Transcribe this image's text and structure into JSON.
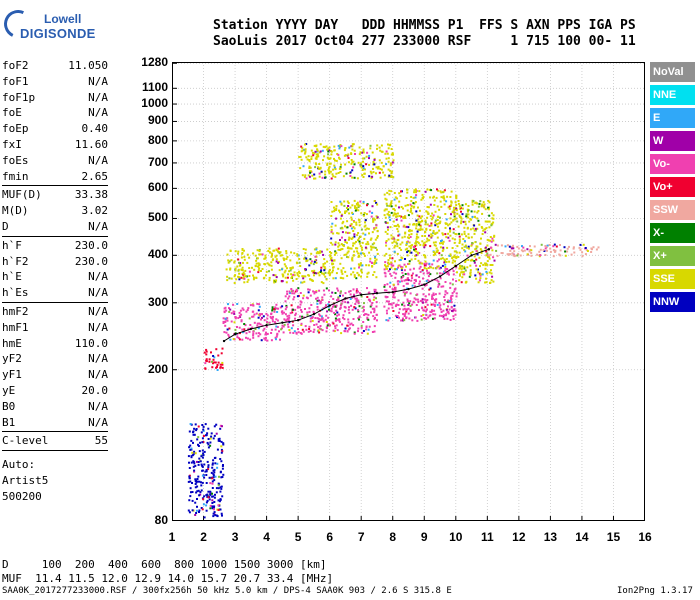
{
  "logo": {
    "line1": "Lowell",
    "line2": "DIGISONDE"
  },
  "header": {
    "line1": "Station YYYY DAY   DDD HHMMSS P1  FFS S AXN PPS IGA PS",
    "line2": "SaoLuis 2017 Oct04 277 233000 RSF     1 715 100 00- 11"
  },
  "params": [
    {
      "k": "foF2",
      "v": "11.050"
    },
    {
      "k": "foF1",
      "v": "N/A"
    },
    {
      "k": "foF1p",
      "v": "N/A"
    },
    {
      "k": "foE",
      "v": "N/A"
    },
    {
      "k": "foEp",
      "v": "0.40"
    },
    {
      "k": "fxI",
      "v": "11.60"
    },
    {
      "k": "foEs",
      "v": "N/A"
    },
    {
      "k": "fmin",
      "v": "2.65"
    },
    {
      "k": "MUF(D)",
      "v": "33.38",
      "sep": true
    },
    {
      "k": "M(D)",
      "v": "3.02"
    },
    {
      "k": "D",
      "v": "N/A"
    },
    {
      "k": "h`F",
      "v": "230.0",
      "sep": true
    },
    {
      "k": "h`F2",
      "v": "230.0"
    },
    {
      "k": "h`E",
      "v": "N/A"
    },
    {
      "k": "h`Es",
      "v": "N/A"
    },
    {
      "k": "hmF2",
      "v": "N/A",
      "sep": true
    },
    {
      "k": "hmF1",
      "v": "N/A"
    },
    {
      "k": "hmE",
      "v": "110.0"
    },
    {
      "k": "yF2",
      "v": "N/A"
    },
    {
      "k": "yF1",
      "v": "N/A"
    },
    {
      "k": "yE",
      "v": "20.0"
    },
    {
      "k": "B0",
      "v": "N/A"
    },
    {
      "k": "B1",
      "v": "N/A"
    },
    {
      "k": "C-level",
      "v": "55",
      "sep": true
    }
  ],
  "auto": {
    "l1": "Auto:",
    "l2": "Artist5",
    "l3": "500200"
  },
  "legend": [
    {
      "label": "NoVal",
      "color": "#909090"
    },
    {
      "label": "NNE",
      "color": "#00e0f0"
    },
    {
      "label": "E",
      "color": "#30a8f8"
    },
    {
      "label": "W",
      "color": "#a000a8"
    },
    {
      "label": "Vo-",
      "color": "#f040b0"
    },
    {
      "label": "Vo+",
      "color": "#f00030"
    },
    {
      "label": "SSW",
      "color": "#f0a8a0"
    },
    {
      "label": "X-",
      "color": "#008000"
    },
    {
      "label": "X+",
      "color": "#80c040"
    },
    {
      "label": "SSE",
      "color": "#d8d800"
    },
    {
      "label": "NNW",
      "color": "#0000c0"
    }
  ],
  "bottom": {
    "d_line": "D     100  200  400  600  800 1000 1500 3000 [km]",
    "muf_line": "MUF  11.4 11.5 12.0 12.9 14.0 15.7 20.7 33.4 [MHz]"
  },
  "footer": {
    "left": "SAA0K_2017277233000.RSF / 300fx256h 50 kHz 5.0 km / DPS-4 SAA0K 903 / 2.6 S 315.8 E",
    "right": "Ion2Png 1.3.17"
  },
  "chart_data": {
    "type": "scatter",
    "title": "",
    "xlabel": "",
    "ylabel": "",
    "xlim": [
      1,
      16
    ],
    "ylim": [
      80,
      1290
    ],
    "y_scale": "log",
    "grid": true,
    "x_ticks": [
      1,
      2,
      3,
      4,
      5,
      6,
      7,
      8,
      9,
      10,
      11,
      12,
      13,
      14,
      15,
      16
    ],
    "y_ticks": [
      80,
      200,
      300,
      400,
      500,
      600,
      700,
      800,
      900,
      1000,
      1100,
      1280
    ],
    "trace": {
      "x": [
        2.65,
        3.0,
        3.5,
        4.0,
        4.5,
        5.0,
        5.5,
        6.0,
        6.5,
        7.0,
        7.5,
        8.0,
        8.5,
        9.0,
        9.5,
        10.0,
        10.5,
        11.05
      ],
      "y": [
        238,
        248,
        256,
        262,
        266,
        270,
        280,
        295,
        308,
        315,
        318,
        320,
        326,
        335,
        352,
        375,
        400,
        415
      ]
    },
    "echo_regions": [
      {
        "x0": 1.5,
        "x1": 2.6,
        "y0": 82,
        "y1": 145,
        "color": "#0000c0"
      },
      {
        "x0": 2.0,
        "x1": 2.6,
        "y0": 200,
        "y1": 230,
        "color": "#f00030"
      },
      {
        "x0": 2.6,
        "x1": 4.5,
        "y0": 240,
        "y1": 300,
        "color": "#f040b0"
      },
      {
        "x0": 2.7,
        "x1": 6.0,
        "y0": 340,
        "y1": 420,
        "color": "#d8d800"
      },
      {
        "x0": 4.5,
        "x1": 7.5,
        "y0": 250,
        "y1": 330,
        "color": "#f040b0"
      },
      {
        "x0": 6.0,
        "x1": 7.5,
        "y0": 350,
        "y1": 560,
        "color": "#d8d800"
      },
      {
        "x0": 7.7,
        "x1": 10.0,
        "y0": 270,
        "y1": 390,
        "color": "#f040b0"
      },
      {
        "x0": 7.7,
        "x1": 10.0,
        "y0": 370,
        "y1": 600,
        "color": "#d8d800"
      },
      {
        "x0": 10.0,
        "x1": 11.2,
        "y0": 340,
        "y1": 560,
        "color": "#d8d800"
      },
      {
        "x0": 11.0,
        "x1": 14.5,
        "y0": 400,
        "y1": 430,
        "color": "#f0a8a0"
      },
      {
        "x0": 5.0,
        "x1": 8.0,
        "y0": 640,
        "y1": 790,
        "color": "#d8d800"
      }
    ]
  }
}
